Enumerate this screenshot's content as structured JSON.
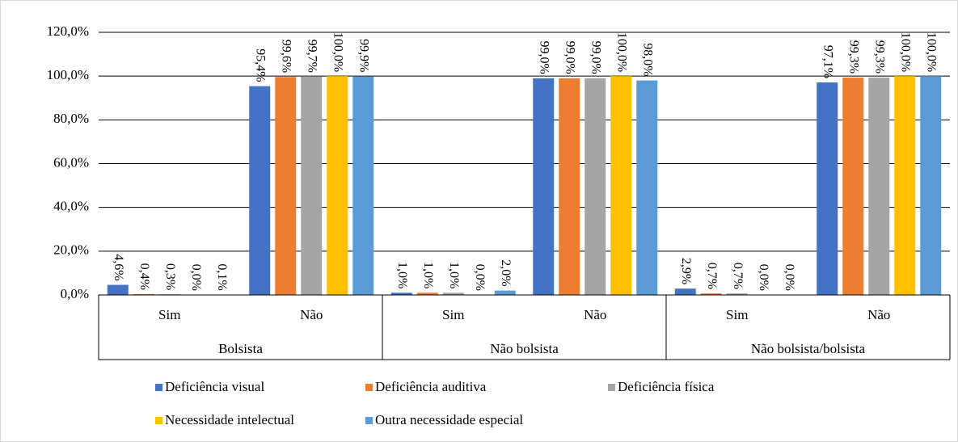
{
  "chart_data": {
    "type": "bar",
    "categories": [
      "Sim",
      "Não",
      "Sim",
      "Não",
      "Sim",
      "Não"
    ],
    "category_groups": [
      "Bolsista",
      "Não bolsista",
      "Não bolsista/bolsista"
    ],
    "series": [
      {
        "name": "Deficiência visual",
        "color": "#4472c4",
        "values": [
          4.6,
          95.4,
          1.0,
          99.0,
          2.9,
          97.1
        ],
        "value_labels": [
          "4,6%",
          "95,4%",
          "1,0%",
          "99,0%",
          "2,9%",
          "97,1%"
        ]
      },
      {
        "name": "Deficiência auditiva",
        "color": "#ed7d31",
        "values": [
          0.4,
          99.6,
          1.0,
          99.0,
          0.7,
          99.3
        ],
        "value_labels": [
          "0,4%",
          "99,6%",
          "1,0%",
          "99,0%",
          "0,7%",
          "99,3%"
        ]
      },
      {
        "name": "Deficiência física",
        "color": "#a5a5a5",
        "values": [
          0.3,
          99.7,
          1.0,
          99.0,
          0.7,
          99.3
        ],
        "value_labels": [
          "0,3%",
          "99,7%",
          "1,0%",
          "99,0%",
          "0,7%",
          "99,3%"
        ]
      },
      {
        "name": "Necessidade intelectual",
        "color": "#ffc000",
        "values": [
          0.0,
          100.0,
          0.0,
          100.0,
          0.0,
          100.0
        ],
        "value_labels": [
          "0,0%",
          "100,0%",
          "0,0%",
          "100,0%",
          "0,0%",
          "100,0%"
        ]
      },
      {
        "name": "Outra necessidade especial",
        "color": "#5b9bd5",
        "values": [
          0.1,
          99.9,
          2.0,
          98.0,
          0.0,
          100.0
        ],
        "value_labels": [
          "0,1%",
          "99,9%",
          "2,0%",
          "98,0%",
          "0,0%",
          "100,0%"
        ]
      }
    ],
    "ylim": [
      0,
      120
    ],
    "yticks": [
      {
        "value": 0,
        "label": "0,0%"
      },
      {
        "value": 20,
        "label": "20,0%"
      },
      {
        "value": 40,
        "label": "40,0%"
      },
      {
        "value": 60,
        "label": "60,0%"
      },
      {
        "value": 80,
        "label": "80,0%"
      },
      {
        "value": 100,
        "label": "100,0%"
      },
      {
        "value": 120,
        "label": "120,0%"
      }
    ],
    "grid": true,
    "legend": "bottom"
  }
}
